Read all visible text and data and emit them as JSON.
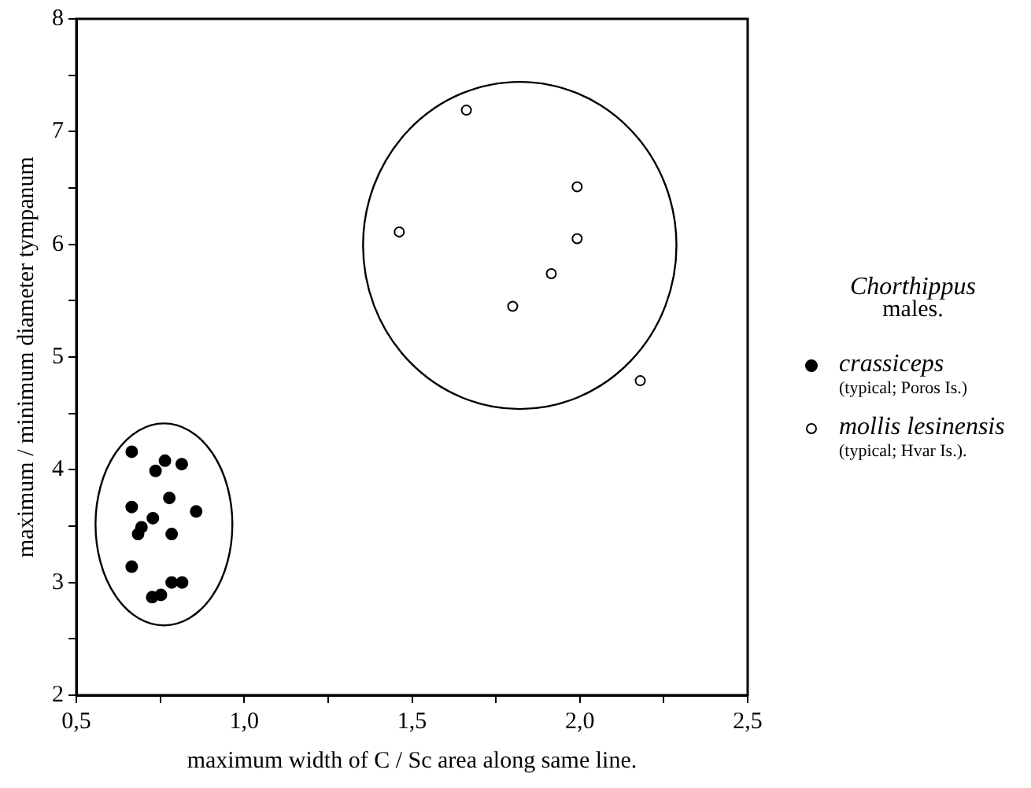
{
  "chart_data": {
    "type": "scatter",
    "xlabel": "maximum width of C / Sc area along same line.",
    "ylabel": "maximum / minimum diameter tympanum",
    "legend_title": "Chorthippus\nmales.",
    "legend": "right",
    "grid": false,
    "marker": "circle",
    "xlim": [
      0.5,
      2.5
    ],
    "xticks": [
      {
        "value": 0.5,
        "label": "0,5"
      },
      {
        "value": 0.75,
        "label": null
      },
      {
        "value": 1.0,
        "label": "1,0"
      },
      {
        "value": 1.25,
        "label": null
      },
      {
        "value": 1.5,
        "label": "1,5"
      },
      {
        "value": 1.75,
        "label": null
      },
      {
        "value": 2.0,
        "label": "2,0"
      },
      {
        "value": 2.25,
        "label": null
      },
      {
        "value": 2.5,
        "label": "2,5"
      }
    ],
    "ylim": [
      2,
      8
    ],
    "yticks": [
      2,
      {
        "value": 2.5,
        "label": null
      },
      3,
      {
        "value": 3.5,
        "label": null
      },
      4,
      {
        "value": 4.5,
        "label": null
      },
      5,
      {
        "value": 5.5,
        "label": null
      },
      6,
      {
        "value": 6.5,
        "label": null
      },
      7,
      {
        "value": 7.5,
        "label": null
      },
      8
    ],
    "series": [
      {
        "name": "crassiceps\n(typical; Poros Is.)",
        "color": "#000000",
        "x": [
          0.665,
          0.764,
          0.814,
          0.736,
          0.665,
          0.777,
          0.857,
          0.728,
          0.694,
          0.684,
          0.784,
          0.665,
          0.784,
          0.815,
          0.726,
          0.752
        ],
        "values": [
          4.16,
          4.08,
          4.05,
          3.99,
          3.67,
          3.75,
          3.63,
          3.57,
          3.49,
          3.43,
          3.43,
          3.14,
          3.0,
          3.0,
          2.87,
          2.89
        ]
      },
      {
        "name": "mollis lesinensis\n(typical; Hvar Is.).",
        "color": "#000000",
        "x": [
          1.662,
          1.462,
          1.992,
          1.992,
          1.915,
          1.8,
          2.18
        ],
        "values": [
          7.19,
          6.11,
          6.51,
          6.05,
          5.74,
          5.45,
          4.79
        ]
      }
    ]
  }
}
